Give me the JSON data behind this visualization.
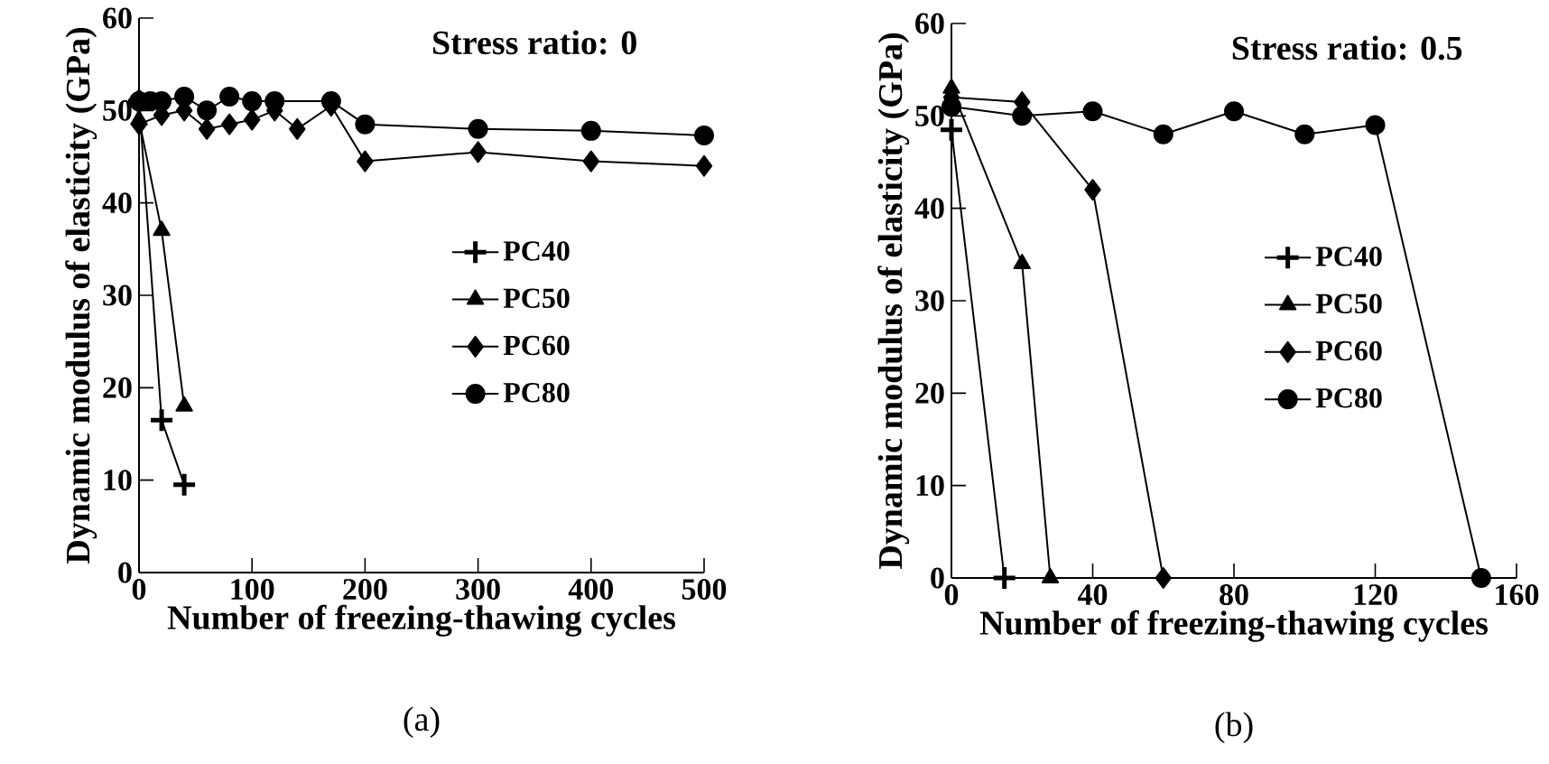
{
  "chart_data": [
    {
      "type": "line",
      "title": "Stress ratio: 0",
      "xlabel": "Number of freezing-thawing cycles",
      "ylabel": "Dynamic modulus of elasticity (GPa)",
      "annotations": [
        "(a)"
      ],
      "xlim": [
        0,
        500
      ],
      "ylim": [
        0,
        60
      ],
      "xticks": [
        0,
        100,
        200,
        300,
        400,
        500
      ],
      "yticks": [
        0,
        10,
        20,
        30,
        40,
        50,
        60
      ],
      "grid": false,
      "legend": "right",
      "series": [
        {
          "name": "PC40",
          "color": "#000000",
          "marker": "cross",
          "x": [
            0,
            20,
            40
          ],
          "values": [
            51,
            16.5,
            9.5
          ]
        },
        {
          "name": "PC50",
          "color": "#000000",
          "marker": "triangle",
          "x": [
            0,
            20,
            40
          ],
          "values": [
            49,
            37,
            18
          ]
        },
        {
          "name": "PC60",
          "color": "#000000",
          "marker": "diamond",
          "x": [
            0,
            20,
            40,
            60,
            80,
            100,
            120,
            140,
            170,
            200,
            300,
            400,
            500
          ],
          "values": [
            48.5,
            49.5,
            50,
            48,
            48.5,
            49,
            50,
            48,
            50.5,
            44.5,
            45.5,
            44.5,
            44
          ]
        },
        {
          "name": "PC80",
          "color": "#000000",
          "marker": "circle",
          "x": [
            0,
            10,
            20,
            40,
            60,
            80,
            100,
            120,
            170,
            200,
            300,
            400,
            500
          ],
          "values": [
            51,
            51,
            51,
            51.5,
            50,
            51.5,
            51,
            51,
            51,
            48.5,
            48,
            47.8,
            47.3
          ]
        }
      ]
    },
    {
      "type": "line",
      "title": "Stress ratio: 0.5",
      "xlabel": "Number of freezing-thawing cycles",
      "ylabel": "Dynamic modulus of elasticity (GPa)",
      "annotations": [
        "(b)"
      ],
      "xlim": [
        0,
        160
      ],
      "ylim": [
        0,
        60
      ],
      "xticks": [
        0,
        40,
        80,
        120,
        160
      ],
      "yticks": [
        0,
        10,
        20,
        30,
        40,
        50,
        60
      ],
      "grid": false,
      "legend": "right",
      "series": [
        {
          "name": "PC40",
          "color": "#000000",
          "marker": "cross",
          "x": [
            0,
            15
          ],
          "values": [
            48.5,
            0
          ]
        },
        {
          "name": "PC50",
          "color": "#000000",
          "marker": "triangle",
          "x": [
            0,
            20,
            28
          ],
          "values": [
            53,
            34,
            0
          ]
        },
        {
          "name": "PC60",
          "color": "#000000",
          "marker": "diamond",
          "x": [
            0,
            20,
            40,
            60
          ],
          "values": [
            52,
            51.5,
            42,
            0
          ]
        },
        {
          "name": "PC80",
          "color": "#000000",
          "marker": "circle",
          "x": [
            0,
            20,
            40,
            60,
            80,
            100,
            120,
            150
          ],
          "values": [
            51,
            50,
            50.5,
            48,
            50.5,
            48,
            49,
            0
          ]
        }
      ]
    }
  ]
}
